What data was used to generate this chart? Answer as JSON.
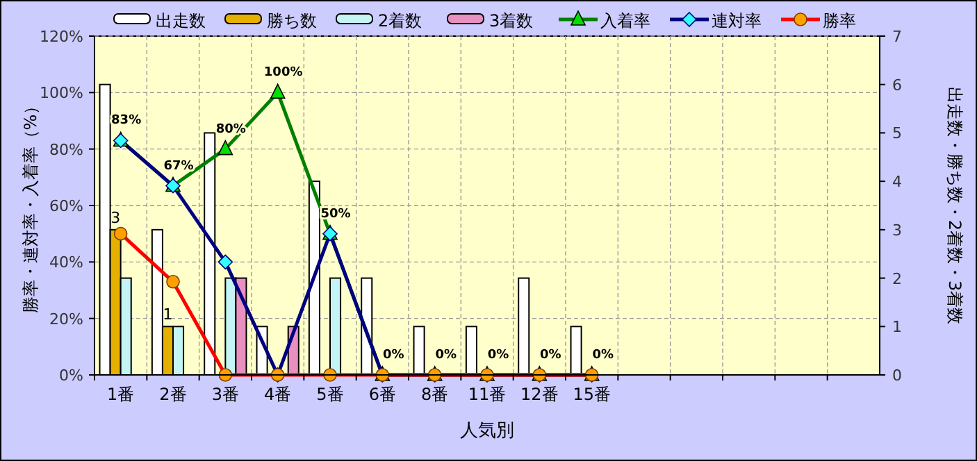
{
  "chart_data": {
    "type": "bar",
    "xlabel": "人気別",
    "ylabel": "勝率・連対率・入着率（%）",
    "y2label": "出走数・勝ち数・2着数・3着数",
    "categories": [
      "1番",
      "2番",
      "3番",
      "4番",
      "5番",
      "6番",
      "8番",
      "11番",
      "12番",
      "15番",
      null,
      null,
      null,
      null,
      null
    ],
    "ylim": [
      0,
      120
    ],
    "yticks": [
      {
        "value": 0,
        "label": "0%"
      },
      {
        "value": 20,
        "label": "20%"
      },
      {
        "value": 40,
        "label": "40%"
      },
      {
        "value": 60,
        "label": "60%"
      },
      {
        "value": 80,
        "label": "80%"
      },
      {
        "value": 100,
        "label": "100%"
      },
      {
        "value": 120,
        "label": "120%"
      }
    ],
    "y2lim": [
      0,
      7
    ],
    "y2ticks": [
      0,
      1,
      2,
      3,
      4,
      5,
      6,
      7
    ],
    "grid": true,
    "legend": "top",
    "series": [
      {
        "name": "出走数",
        "axis": "y2",
        "color": "#ffffff",
        "values": [
          6,
          3,
          5,
          1,
          4,
          2,
          1,
          1,
          2,
          1,
          null,
          null,
          null,
          null,
          null
        ]
      },
      {
        "name": "勝ち数",
        "axis": "y2",
        "color": "#e6b000",
        "values": [
          3,
          1,
          0,
          0,
          0,
          0,
          0,
          0,
          0,
          0,
          null,
          null,
          null,
          null,
          null
        ],
        "value_labels": [
          "3",
          "1",
          null,
          null,
          null,
          null,
          null,
          null,
          null,
          null,
          null,
          null,
          null,
          null,
          null
        ]
      },
      {
        "name": "2着数",
        "axis": "y2",
        "color": "#c4f4f4",
        "values": [
          2,
          1,
          2,
          0,
          2,
          0,
          0,
          0,
          0,
          0,
          null,
          null,
          null,
          null,
          null
        ]
      },
      {
        "name": "3着数",
        "axis": "y2",
        "color": "#e890c0",
        "values": [
          0,
          0,
          2,
          1,
          0,
          0,
          0,
          0,
          0,
          0,
          null,
          null,
          null,
          null,
          null
        ]
      },
      {
        "name": "入着率",
        "type": "line",
        "color": "#008000",
        "marker": "triangle",
        "values": [
          83,
          67,
          80,
          100,
          50,
          0,
          0,
          0,
          0,
          0,
          null,
          null,
          null,
          null,
          null
        ],
        "value_labels": [
          "83%",
          "67%",
          "80%",
          "100%",
          "50%",
          "0%",
          "0%",
          "0%",
          "0%",
          "0%",
          null,
          null,
          null,
          null,
          null
        ]
      },
      {
        "name": "連対率",
        "type": "line",
        "color": "#000080",
        "marker": "diamond",
        "values": [
          83,
          67,
          40,
          0,
          50,
          0,
          0,
          0,
          0,
          0,
          null,
          null,
          null,
          null,
          null
        ]
      },
      {
        "name": "勝率",
        "type": "line",
        "color": "#ff0000",
        "marker": "circle",
        "values": [
          50,
          33,
          0,
          0,
          0,
          0,
          0,
          0,
          0,
          0,
          null,
          null,
          null,
          null,
          null
        ]
      }
    ]
  }
}
